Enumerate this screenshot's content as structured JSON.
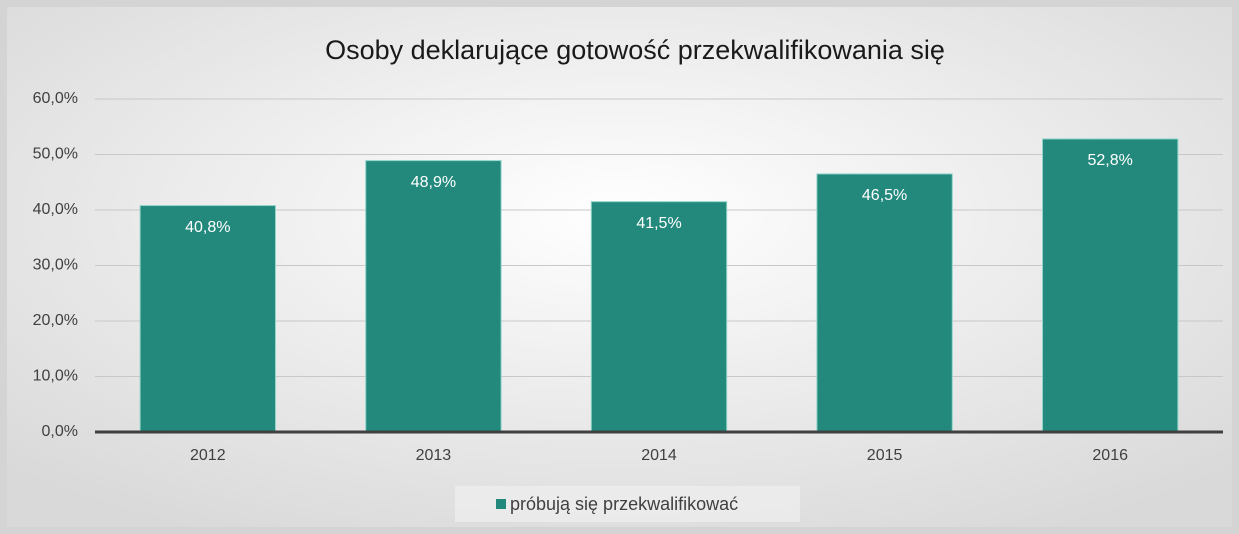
{
  "chart_data": {
    "type": "bar",
    "title": "Osoby deklarujące gotowość przekwalifikowania się",
    "categories": [
      "2012",
      "2013",
      "2014",
      "2015",
      "2016"
    ],
    "series": [
      {
        "name": "próbują się przekwalifikować",
        "color": "#24897d",
        "values": [
          40.8,
          48.9,
          41.5,
          46.5,
          52.8
        ],
        "value_labels": [
          "40,8%",
          "48,9%",
          "41,5%",
          "46,5%",
          "52,8%"
        ]
      }
    ],
    "ylim": [
      0,
      60
    ],
    "yticks": [
      {
        "value": 0,
        "label": "0,0%"
      },
      {
        "value": 10,
        "label": "10,0%"
      },
      {
        "value": 20,
        "label": "20,0%"
      },
      {
        "value": 30,
        "label": "30,0%"
      },
      {
        "value": 40,
        "label": "40,0%"
      },
      {
        "value": 50,
        "label": "50,0%"
      },
      {
        "value": 60,
        "label": "60,0%"
      }
    ],
    "grid": true,
    "legend": "bottom"
  }
}
